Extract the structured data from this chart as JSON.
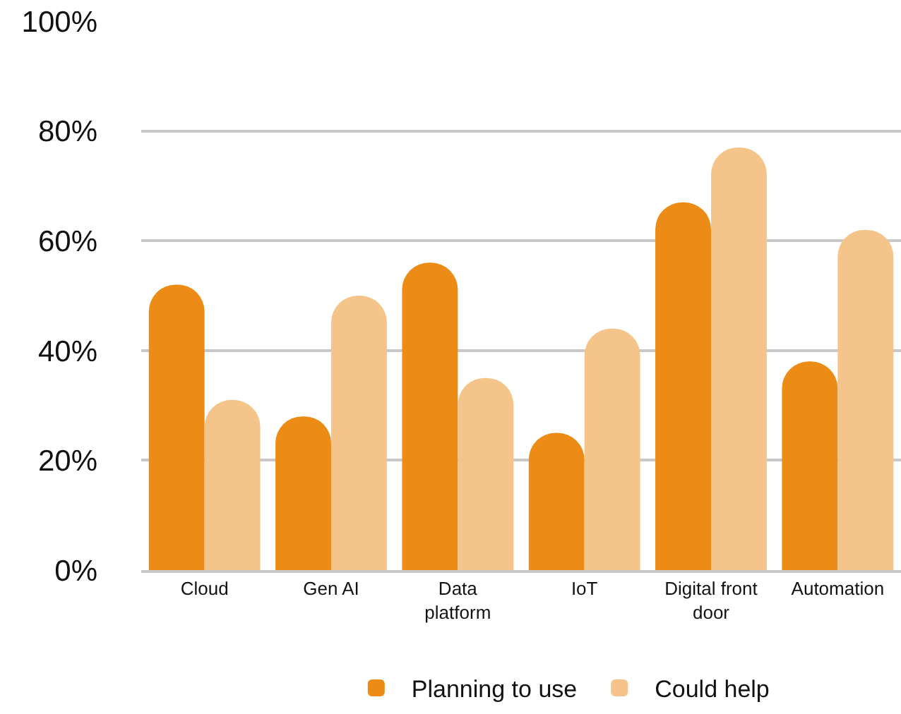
{
  "chart_data": {
    "type": "bar",
    "categories": [
      "Cloud",
      "Gen AI",
      "Data platform",
      "IoT",
      "Digital front door",
      "Automation"
    ],
    "series": [
      {
        "name": "Planning to use",
        "color": "#ec8c16",
        "values": [
          52,
          28,
          56,
          25,
          67,
          38
        ]
      },
      {
        "name": "Could help",
        "color": "#f5c48a",
        "values": [
          31,
          50,
          35,
          44,
          77,
          62
        ]
      }
    ],
    "ylim": [
      0,
      100
    ],
    "yticks": [
      {
        "value": 0,
        "label": "0%"
      },
      {
        "value": 20,
        "label": "20%"
      },
      {
        "value": 40,
        "label": "40%"
      },
      {
        "value": 60,
        "label": "60%"
      },
      {
        "value": 80,
        "label": "80%"
      },
      {
        "value": 100,
        "label": "100%"
      }
    ],
    "grid": "y",
    "legend": "bottom"
  }
}
